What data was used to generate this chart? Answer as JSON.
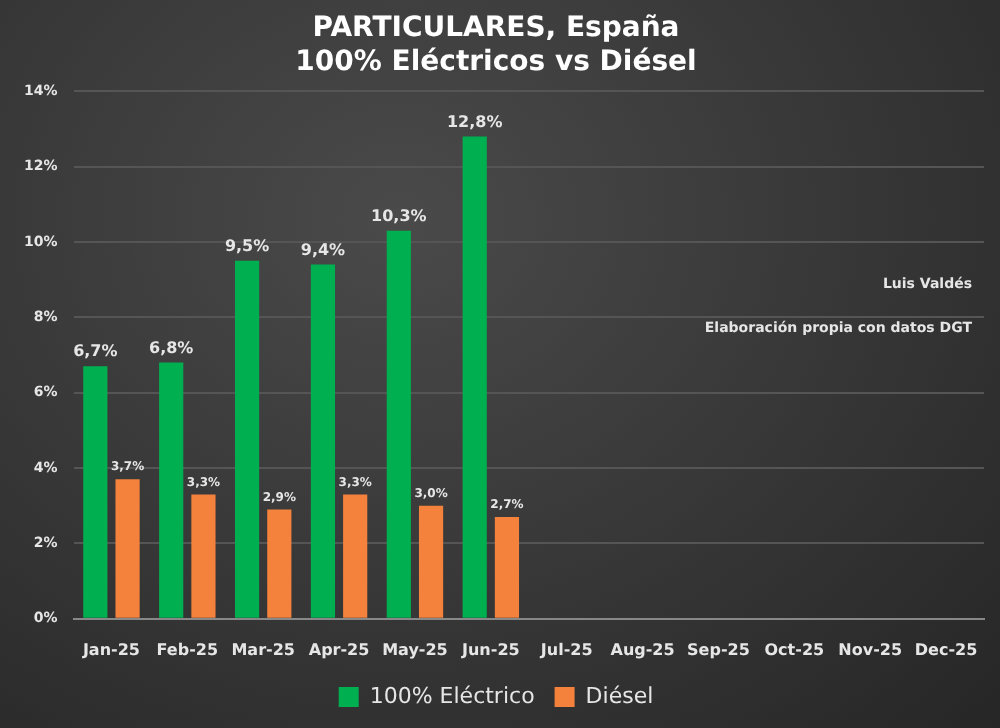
{
  "chart_data": {
    "type": "bar",
    "title": "PARTICULARES, España",
    "subtitle": "100% Eléctricos vs Diésel",
    "categories": [
      "Jan-25",
      "Feb-25",
      "Mar-25",
      "Apr-25",
      "May-25",
      "Jun-25",
      "Jul-25",
      "Aug-25",
      "Sep-25",
      "Oct-25",
      "Nov-25",
      "Dec-25"
    ],
    "series": [
      {
        "name": "100% Eléctrico",
        "color": "#00b050",
        "values": [
          6.7,
          6.8,
          9.5,
          9.4,
          10.3,
          12.8,
          null,
          null,
          null,
          null,
          null,
          null
        ],
        "value_labels": [
          "6,7%",
          "6,8%",
          "9,5%",
          "9,4%",
          "10,3%",
          "12,8%",
          null,
          null,
          null,
          null,
          null,
          null
        ]
      },
      {
        "name": "Diésel",
        "color": "#f4823c",
        "values": [
          3.7,
          3.3,
          2.9,
          3.3,
          3.0,
          2.7,
          null,
          null,
          null,
          null,
          null,
          null
        ],
        "value_labels": [
          "3,7%",
          "3,3%",
          "2,9%",
          "3,3%",
          "3,0%",
          "2,7%",
          null,
          null,
          null,
          null,
          null,
          null
        ]
      }
    ],
    "ylim": [
      0,
      14
    ],
    "yticks": [
      {
        "value": 0,
        "label": "0%"
      },
      {
        "value": 2,
        "label": "2%"
      },
      {
        "value": 4,
        "label": "4%"
      },
      {
        "value": 6,
        "label": "6%"
      },
      {
        "value": 8,
        "label": "8%"
      },
      {
        "value": 10,
        "label": "10%"
      },
      {
        "value": 12,
        "label": "12%"
      },
      {
        "value": 14,
        "label": "14%"
      }
    ],
    "grid": "y",
    "legend": "bottom",
    "annotations": [
      "Luis Valdés",
      "Elaboración propia con datos DGT"
    ]
  }
}
